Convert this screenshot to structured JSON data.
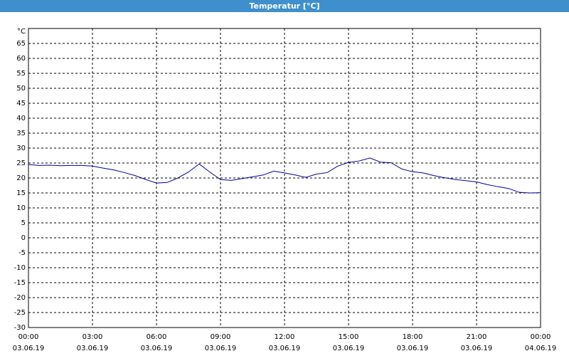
{
  "chart_data": {
    "type": "line",
    "title": "Temperatur [°C]",
    "y_unit": "°C",
    "x": [
      0,
      0.5,
      1,
      1.5,
      2,
      2.5,
      3,
      3.5,
      4,
      4.5,
      5,
      5.5,
      6,
      6.5,
      7,
      7.5,
      8,
      8.5,
      9,
      9.5,
      10,
      10.5,
      11,
      11.5,
      12,
      12.5,
      13,
      13.5,
      14,
      14.5,
      15,
      15.5,
      16,
      16.5,
      17,
      17.5,
      18,
      18.5,
      19,
      19.5,
      20,
      20.5,
      21,
      21.5,
      22,
      22.5,
      23,
      23.5,
      24
    ],
    "series": [
      {
        "name": "Temperatur",
        "color": "#0000a0",
        "values": [
          24.5,
          24.2,
          24.3,
          24.1,
          24.2,
          24.2,
          24,
          23.3,
          22.7,
          21.8,
          20.8,
          19.5,
          18.3,
          18.5,
          20,
          22,
          24.7,
          22,
          19.5,
          19.2,
          19.8,
          20.4,
          21,
          22.3,
          21.7,
          21,
          20.2,
          21.3,
          21.8,
          24,
          25.2,
          25.7,
          26.7,
          25.3,
          25.1,
          23,
          22.1,
          21.7,
          20.8,
          20.1,
          19.5,
          19.1,
          18.7,
          17.8,
          17.1,
          16.5,
          15.2,
          15,
          15.1
        ]
      }
    ],
    "xlim": [
      0,
      24
    ],
    "xticks": [
      {
        "value": 0,
        "label": "00:00",
        "date": "03.06.19"
      },
      {
        "value": 3,
        "label": "03:00",
        "date": "03.06.19"
      },
      {
        "value": 6,
        "label": "06:00",
        "date": "03.06.19"
      },
      {
        "value": 9,
        "label": "09:00",
        "date": "03.06.19"
      },
      {
        "value": 12,
        "label": "12:00",
        "date": "03.06.19"
      },
      {
        "value": 15,
        "label": "15:00",
        "date": "03.06.19"
      },
      {
        "value": 18,
        "label": "18:00",
        "date": "03.06.19"
      },
      {
        "value": 21,
        "label": "21:00",
        "date": "03.06.19"
      },
      {
        "value": 24,
        "label": "00:00",
        "date": "04.06.19"
      }
    ],
    "ylim": [
      -30,
      70
    ],
    "yticks": [
      -30,
      -25,
      -20,
      -15,
      -10,
      -5,
      0,
      5,
      10,
      15,
      20,
      25,
      30,
      35,
      40,
      45,
      50,
      55,
      60,
      65
    ],
    "grid": true
  }
}
